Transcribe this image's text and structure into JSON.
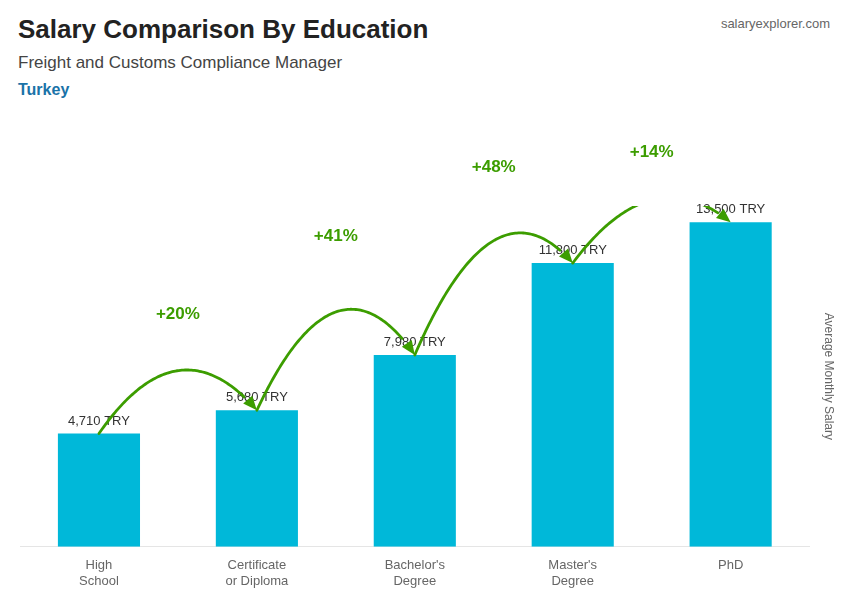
{
  "chart_data": {
    "type": "bar",
    "title": "Salary Comparison By Education",
    "subtitle": "Freight and Customs Compliance Manager",
    "ylabel": "Average Monthly Salary",
    "categories": [
      "High\nSchool",
      "Certificate\nor Diploma",
      "Bachelor's\nDegree",
      "Master's\nDegree",
      "PhD"
    ],
    "values": [
      4710,
      5680,
      7980,
      11800,
      13500
    ],
    "value_labels": [
      "4,710 TRY",
      "5,680 TRY",
      "7,980 TRY",
      "11,800 TRY",
      "13,500 TRY"
    ],
    "data_labels": true,
    "color": "#00b8d9",
    "ylim": [
      0,
      14175
    ],
    "tick_labels": "x",
    "grid": false,
    "annotations": [
      {
        "text": "Turkey"
      },
      {
        "text": "salaryexplorer.com"
      },
      {
        "text": "+20%",
        "from": "High\nSchool",
        "to": "Certificate\nor Diploma",
        "color": "#3c9d00"
      },
      {
        "text": "+41%",
        "from": "Certificate\nor Diploma",
        "to": "Bachelor's\nDegree",
        "color": "#3c9d00"
      },
      {
        "text": "+48%",
        "from": "Bachelor's\nDegree",
        "to": "Master's\nDegree",
        "color": "#3c9d00"
      },
      {
        "text": "+14%",
        "from": "Master's\nDegree",
        "to": "PhD",
        "color": "#3c9d00"
      }
    ]
  }
}
